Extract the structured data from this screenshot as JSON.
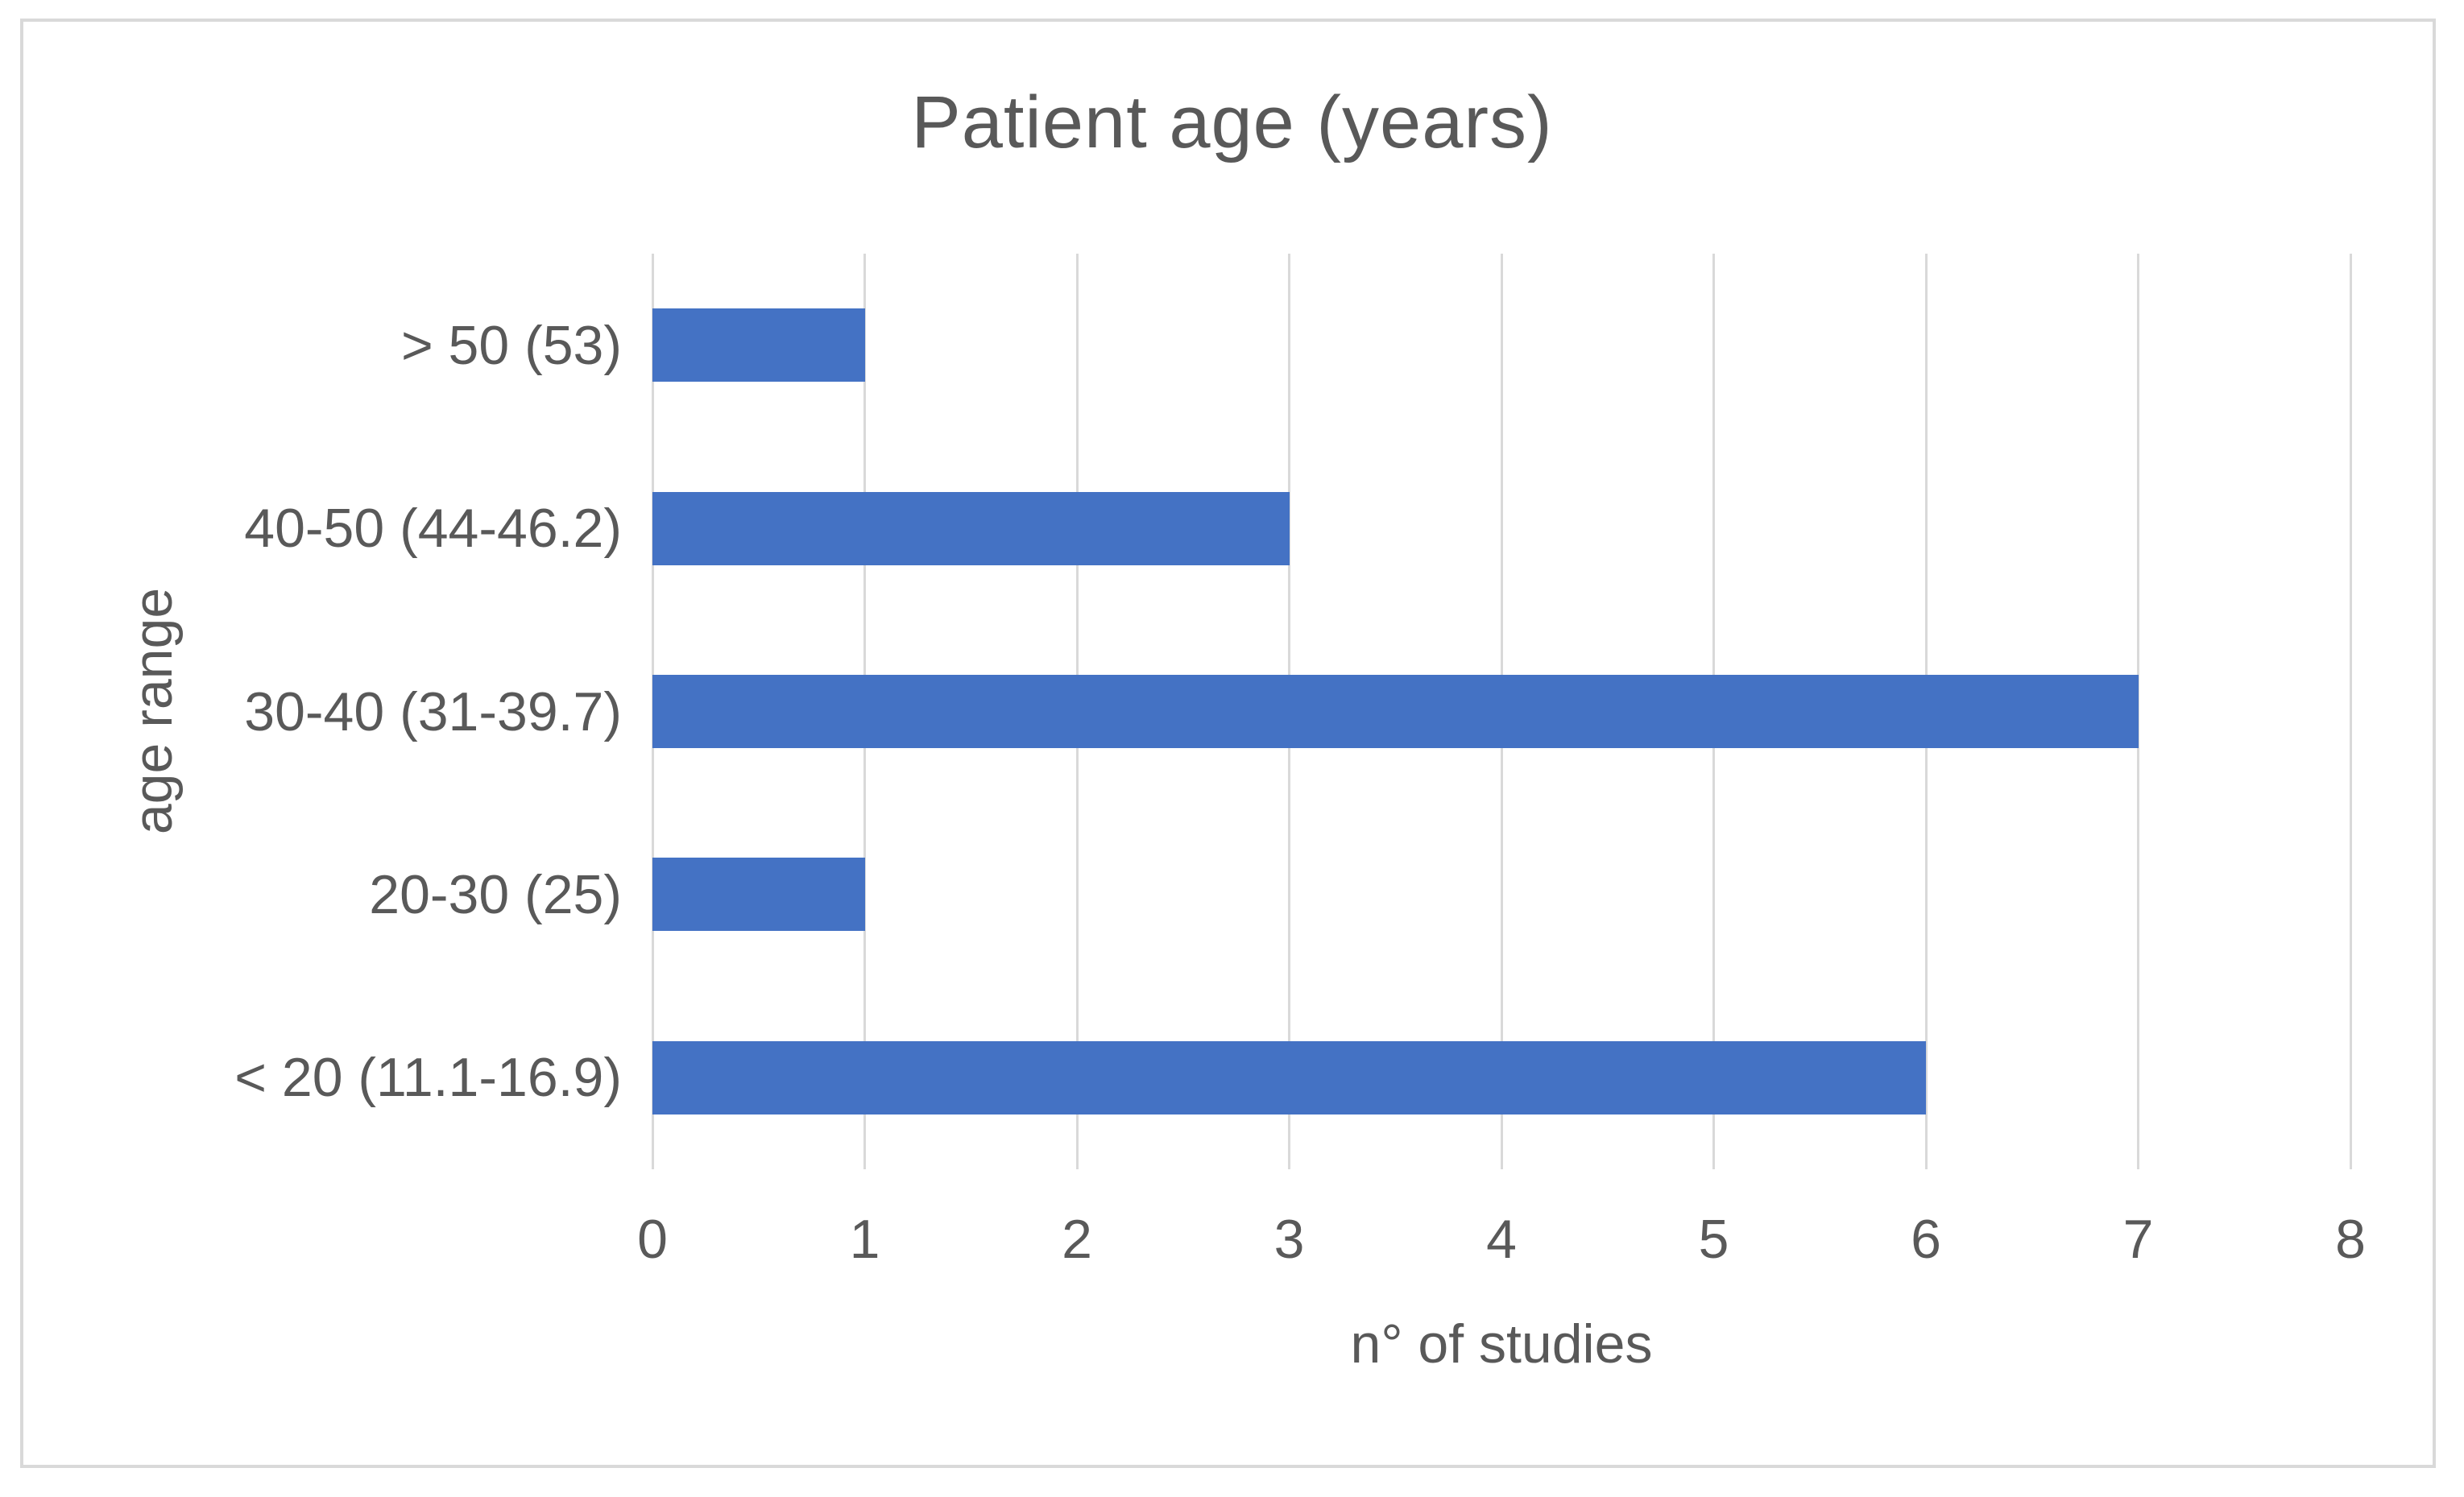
{
  "chart_data": {
    "type": "bar",
    "orientation": "horizontal",
    "title": "Patient age (years)",
    "categories": [
      "> 50 (53)",
      "40-50 (44-46.2)",
      "30-40 (31-39.7)",
      "20-30 (25)",
      "< 20 (11.1-16.9)"
    ],
    "values": [
      1,
      3,
      7,
      1,
      6
    ],
    "xlabel": "n° of studies",
    "ylabel": "age range",
    "xlim": [
      0,
      8
    ],
    "xticks": [
      0,
      1,
      2,
      3,
      4,
      5,
      6,
      7,
      8
    ],
    "grid": "vertical-only",
    "legend": "none",
    "colors": {
      "bar": "#4472c4",
      "text": "#595959",
      "gridline": "#d9d9d9",
      "frame_border": "#d9d9d9",
      "background": "#ffffff"
    }
  }
}
